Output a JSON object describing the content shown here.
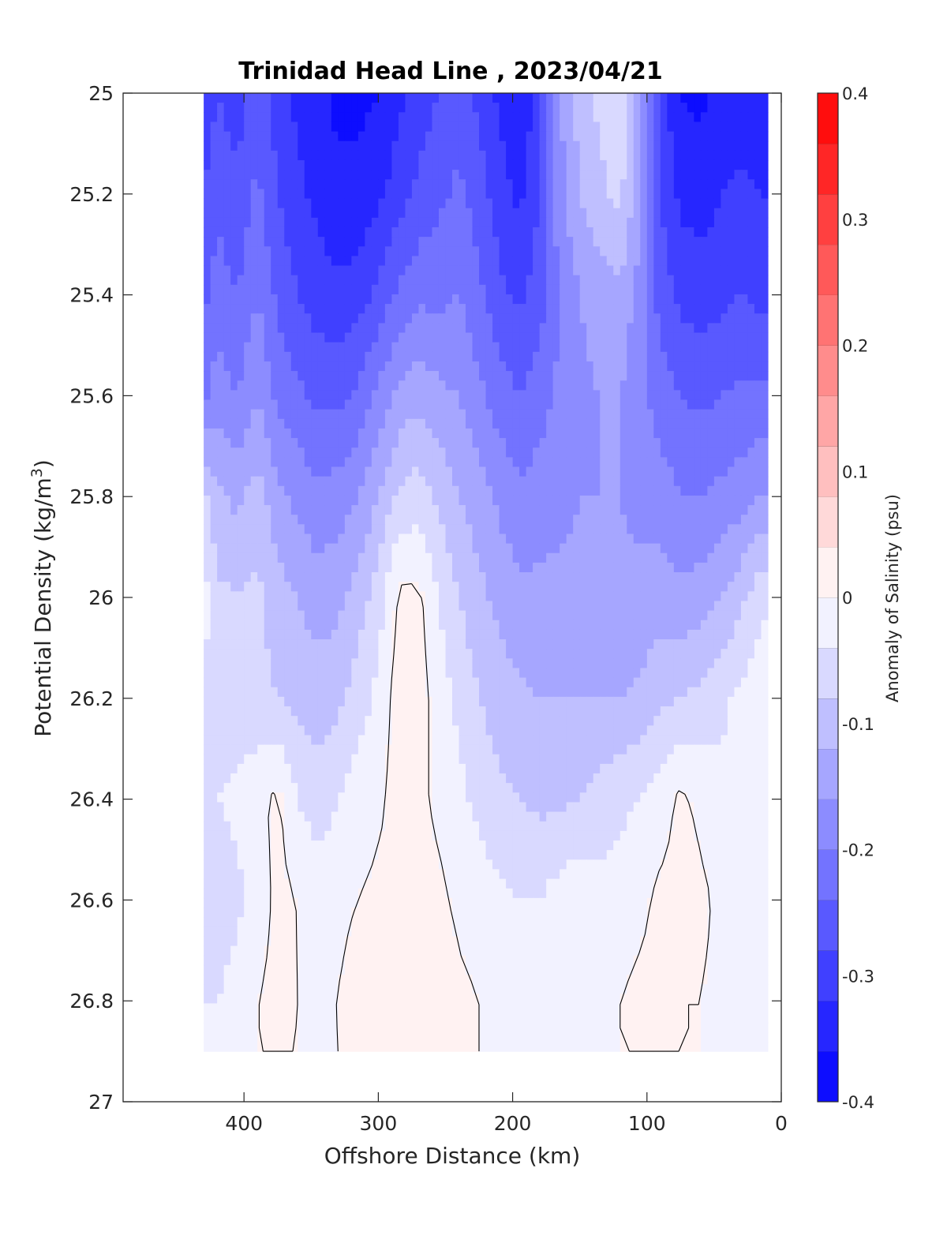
{
  "chart_data": {
    "type": "heatmap",
    "title": "Trinidad Head Line , 2023/04/21",
    "xlabel": "Offshore Distance (km)",
    "ylabel_main": "Potential Density (kg/m",
    "ylabel_sup": "3",
    "ylabel_close": ")",
    "xlim": [
      490,
      0
    ],
    "ylim": [
      25,
      27
    ],
    "x_ticks": [
      400,
      300,
      200,
      100,
      0
    ],
    "x_tick_labels": [
      "400",
      "300",
      "200",
      "100",
      "0"
    ],
    "y_ticks": [
      25,
      25.2,
      25.4,
      25.6,
      25.8,
      26,
      26.2,
      26.4,
      26.6,
      26.8,
      27
    ],
    "y_tick_labels": [
      "25",
      "25.2",
      "25.4",
      "25.6",
      "25.8",
      "26",
      "26.2",
      "26.4",
      "26.6",
      "26.8",
      "27"
    ],
    "colorbar": {
      "label": "Anomaly of Salinity (psu)",
      "range": [
        -0.4,
        0.4
      ],
      "levels": 20,
      "ticks": [
        0.4,
        0.3,
        0.2,
        0.1,
        0,
        -0.1,
        -0.2,
        -0.3,
        -0.4
      ],
      "tick_labels": [
        "0.4",
        "0.3",
        "0.2",
        "0.1",
        "0",
        "-0.1",
        "-0.2",
        "-0.3",
        "-0.4"
      ],
      "colormap": "blue-white-red"
    },
    "data_extent_x_km": [
      430,
      10
    ],
    "stations_km": [
      430,
      420,
      405,
      390,
      375,
      360,
      345,
      330,
      315,
      300,
      285,
      270,
      255,
      240,
      225,
      210,
      195,
      180,
      165,
      150,
      135,
      120,
      105,
      90,
      75,
      60,
      45,
      30,
      15
    ],
    "profile_depths": [
      25.0,
      25.2,
      25.4,
      25.6,
      25.8,
      26.0,
      26.2,
      26.4,
      26.6,
      26.8,
      26.9
    ],
    "approx_anomaly_profiles": {
      "stations_km": [
        430,
        420,
        405,
        390,
        375,
        360,
        345,
        330,
        315,
        300,
        285,
        270,
        255,
        240,
        225,
        210,
        195,
        180,
        165,
        150,
        135,
        120,
        105,
        90,
        75,
        60,
        45,
        30,
        15
      ],
      "density_levels": [
        25.0,
        25.2,
        25.4,
        25.6,
        25.8,
        26.0,
        26.2,
        26.4,
        26.6,
        26.8,
        26.9
      ],
      "values": [
        [
          -0.31,
          -0.28,
          -0.3,
          -0.26,
          -0.3,
          -0.33,
          -0.35,
          -0.37,
          -0.37,
          -0.36,
          -0.33,
          -0.3,
          -0.28,
          -0.26,
          -0.29,
          -0.33,
          -0.36,
          -0.3,
          -0.17,
          -0.1,
          -0.07,
          -0.05,
          -0.14,
          -0.3,
          -0.36,
          -0.37,
          -0.35,
          -0.34,
          -0.36
        ],
        [
          -0.28,
          -0.25,
          -0.27,
          -0.23,
          -0.28,
          -0.31,
          -0.33,
          -0.35,
          -0.35,
          -0.33,
          -0.3,
          -0.27,
          -0.25,
          -0.23,
          -0.26,
          -0.3,
          -0.33,
          -0.28,
          -0.17,
          -0.12,
          -0.09,
          -0.07,
          -0.15,
          -0.28,
          -0.33,
          -0.34,
          -0.32,
          -0.31,
          -0.32
        ],
        [
          -0.25,
          -0.22,
          -0.24,
          -0.2,
          -0.25,
          -0.28,
          -0.3,
          -0.31,
          -0.3,
          -0.27,
          -0.23,
          -0.21,
          -0.21,
          -0.2,
          -0.23,
          -0.27,
          -0.29,
          -0.26,
          -0.2,
          -0.16,
          -0.14,
          -0.13,
          -0.18,
          -0.26,
          -0.29,
          -0.3,
          -0.29,
          -0.28,
          -0.29
        ],
        [
          -0.21,
          -0.18,
          -0.2,
          -0.16,
          -0.21,
          -0.23,
          -0.25,
          -0.25,
          -0.23,
          -0.19,
          -0.15,
          -0.13,
          -0.15,
          -0.16,
          -0.19,
          -0.22,
          -0.24,
          -0.22,
          -0.19,
          -0.17,
          -0.16,
          -0.16,
          -0.19,
          -0.22,
          -0.24,
          -0.25,
          -0.24,
          -0.23,
          -0.23
        ],
        [
          -0.07,
          -0.11,
          -0.13,
          -0.1,
          -0.15,
          -0.17,
          -0.19,
          -0.18,
          -0.16,
          -0.12,
          -0.07,
          -0.06,
          -0.09,
          -0.12,
          -0.14,
          -0.17,
          -0.19,
          -0.18,
          -0.17,
          -0.16,
          -0.16,
          -0.16,
          -0.17,
          -0.18,
          -0.2,
          -0.2,
          -0.19,
          -0.18,
          -0.16
        ],
        [
          -0.02,
          -0.07,
          -0.08,
          -0.07,
          -0.1,
          -0.12,
          -0.14,
          -0.13,
          -0.1,
          -0.06,
          0.01,
          0.01,
          -0.04,
          -0.08,
          -0.11,
          -0.13,
          -0.15,
          -0.15,
          -0.15,
          -0.15,
          -0.15,
          -0.15,
          -0.15,
          -0.14,
          -0.15,
          -0.14,
          -0.12,
          -0.09,
          -0.05
        ],
        [
          -0.05,
          -0.05,
          -0.07,
          -0.07,
          -0.08,
          -0.09,
          -0.1,
          -0.09,
          -0.06,
          -0.03,
          0.02,
          0.02,
          -0.02,
          -0.05,
          -0.08,
          -0.1,
          -0.11,
          -0.12,
          -0.12,
          -0.12,
          -0.12,
          -0.12,
          -0.11,
          -0.09,
          -0.08,
          -0.07,
          -0.05,
          -0.03,
          -0.01
        ],
        [
          -0.05,
          -0.04,
          -0.03,
          -0.01,
          0.01,
          -0.04,
          -0.06,
          -0.04,
          -0.02,
          -0.01,
          0.02,
          0.01,
          -0.01,
          -0.03,
          -0.05,
          -0.07,
          -0.08,
          -0.09,
          -0.09,
          -0.08,
          -0.06,
          -0.05,
          -0.04,
          -0.02,
          0.01,
          -0.01,
          -0.03,
          -0.03,
          -0.01
        ],
        [
          -0.06,
          -0.07,
          -0.05,
          -0.02,
          0.01,
          0.0,
          -0.02,
          -0.01,
          0.0,
          0.01,
          0.02,
          0.02,
          0.01,
          -0.01,
          -0.02,
          -0.03,
          -0.04,
          -0.04,
          -0.02,
          -0.01,
          -0.03,
          -0.02,
          -0.01,
          0.01,
          0.01,
          0.01,
          -0.01,
          -0.01,
          -0.01
        ],
        [
          -0.04,
          -0.04,
          -0.02,
          0.0,
          0.01,
          0.0,
          -0.01,
          0.0,
          0.02,
          0.03,
          0.04,
          0.04,
          0.03,
          0.01,
          0.0,
          -0.01,
          -0.02,
          -0.03,
          -0.02,
          -0.01,
          -0.01,
          0.0,
          0.01,
          0.01,
          0.0,
          0.0,
          -0.01,
          -0.01,
          -0.01
        ],
        [
          0.0,
          0.0,
          0.0,
          0.0,
          0.0,
          0.0,
          -0.01,
          0.0,
          0.01,
          0.02,
          0.03,
          0.03,
          0.02,
          0.01,
          0.0,
          -0.01,
          -0.02,
          -0.02,
          -0.01,
          -0.01,
          0.0,
          0.0,
          0.0,
          0.0,
          0.0,
          0.0,
          0.0,
          0.0,
          0.0
        ]
      ]
    },
    "zero_contour_lines": true,
    "grid": false
  }
}
